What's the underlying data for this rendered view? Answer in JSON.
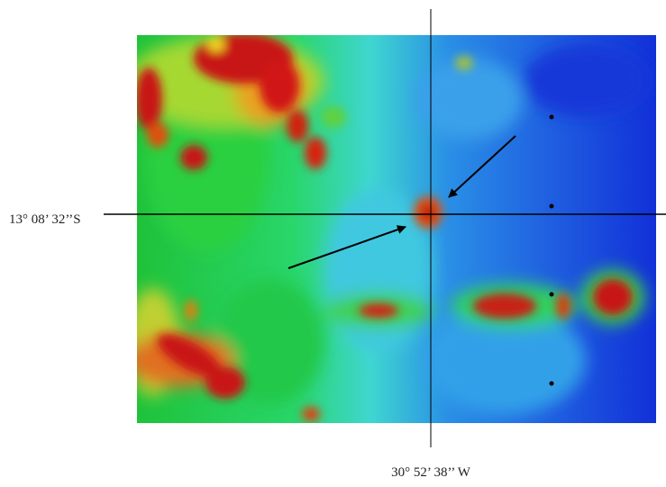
{
  "map": {
    "latitude_label": "13° 08’ 32’’S",
    "longitude_label": "30° 52’ 38’’ W"
  }
}
